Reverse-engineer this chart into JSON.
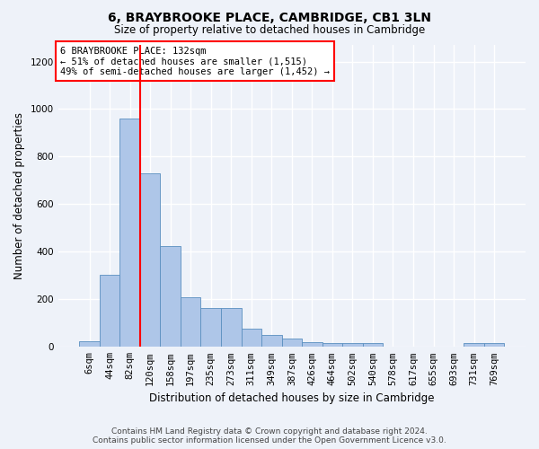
{
  "title": "6, BRAYBROOKE PLACE, CAMBRIDGE, CB1 3LN",
  "subtitle": "Size of property relative to detached houses in Cambridge",
  "xlabel": "Distribution of detached houses by size in Cambridge",
  "ylabel": "Number of detached properties",
  "footer_line1": "Contains HM Land Registry data © Crown copyright and database right 2024.",
  "footer_line2": "Contains public sector information licensed under the Open Government Licence v3.0.",
  "annotation_line1": "6 BRAYBROOKE PLACE: 132sqm",
  "annotation_line2": "← 51% of detached houses are smaller (1,515)",
  "annotation_line3": "49% of semi-detached houses are larger (1,452) →",
  "bar_labels": [
    "6sqm",
    "44sqm",
    "82sqm",
    "120sqm",
    "158sqm",
    "197sqm",
    "235sqm",
    "273sqm",
    "311sqm",
    "349sqm",
    "387sqm",
    "426sqm",
    "464sqm",
    "502sqm",
    "540sqm",
    "578sqm",
    "617sqm",
    "655sqm",
    "693sqm",
    "731sqm",
    "769sqm"
  ],
  "bar_values": [
    25,
    305,
    960,
    730,
    425,
    210,
    165,
    165,
    75,
    50,
    35,
    20,
    15,
    15,
    15,
    0,
    0,
    0,
    0,
    15,
    15
  ],
  "bar_color": "#aec6e8",
  "bar_edge_color": "#5a8fc0",
  "vline_x_index": 3,
  "vline_color": "red",
  "ylim": [
    0,
    1270
  ],
  "yticks": [
    0,
    200,
    400,
    600,
    800,
    1000,
    1200
  ],
  "background_color": "#eef2f9",
  "grid_color": "#ffffff",
  "annotation_box_color": "white",
  "annotation_box_edge_color": "red",
  "title_fontsize": 10,
  "subtitle_fontsize": 8.5,
  "ylabel_fontsize": 8.5,
  "xlabel_fontsize": 8.5,
  "tick_fontsize": 7.5,
  "annotation_fontsize": 7.5,
  "footer_fontsize": 6.5
}
